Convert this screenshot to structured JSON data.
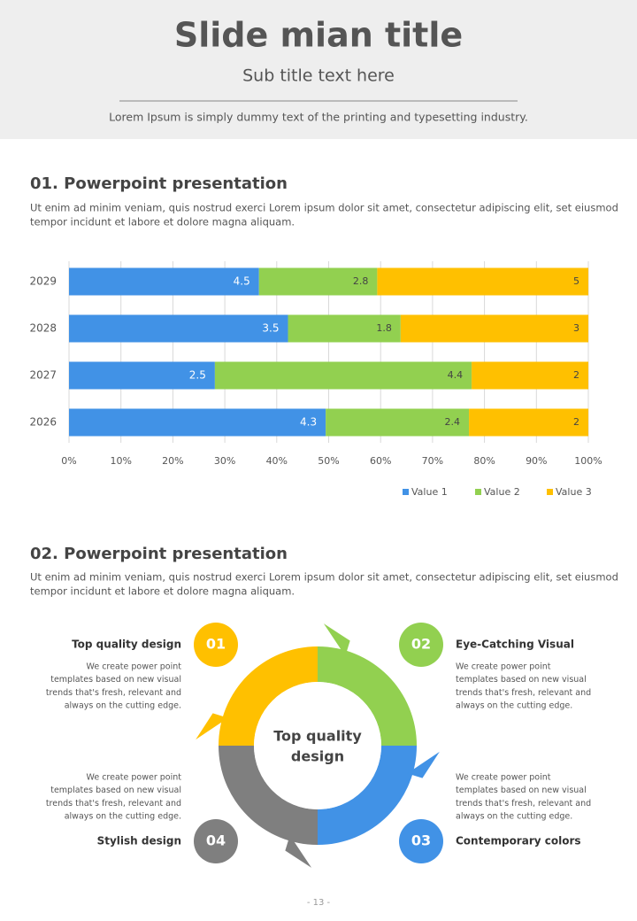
{
  "header": {
    "title": "Slide mian title",
    "subtitle": "Sub title text here",
    "description": "Lorem Ipsum is simply dummy text of the printing and typesetting industry."
  },
  "section1": {
    "heading": "01. Powerpoint presentation",
    "text_lines": [
      "Ut enim ad minim veniam, quis nostrud exerci  Lorem ipsum dolor sit amet, consectetur adipiscing elit, set eiusmod",
      "tempor incidunt et labore et dolore magna aliquam."
    ]
  },
  "chart_data": {
    "type": "stacked_percent_bar",
    "orientation": "horizontal",
    "categories": [
      "2029",
      "2028",
      "2027",
      "2026"
    ],
    "series": [
      {
        "name": "Value 1",
        "color": "#4192e6",
        "values": [
          4.5,
          3.5,
          2.5,
          4.3
        ]
      },
      {
        "name": "Value 2",
        "color": "#92d050",
        "values": [
          2.8,
          1.8,
          4.4,
          2.4
        ]
      },
      {
        "name": "Value 3",
        "color": "#ffc000",
        "values": [
          5,
          3,
          2,
          2
        ]
      }
    ],
    "xlim": [
      0,
      100
    ],
    "xticks": [
      {
        "value": 0,
        "label": "0%"
      },
      {
        "value": 10,
        "label": "10%"
      },
      {
        "value": 20,
        "label": "20%"
      },
      {
        "value": 30,
        "label": "30%"
      },
      {
        "value": 40,
        "label": "40%"
      },
      {
        "value": 50,
        "label": "50%"
      },
      {
        "value": 60,
        "label": "60%"
      },
      {
        "value": 70,
        "label": "70%"
      },
      {
        "value": 80,
        "label": "80%"
      },
      {
        "value": 90,
        "label": "90%"
      },
      {
        "value": 100,
        "label": "100%"
      }
    ],
    "grid": true,
    "legend": "bottom-right"
  },
  "section2": {
    "heading": "02. Powerpoint presentation",
    "text_lines": [
      "Ut enim ad minim veniam, quis nostrud exerci  Lorem ipsum dolor sit amet, consectetur adipiscing elit, set eiusmod",
      "tempor incidunt et labore et dolore magna aliquam."
    ],
    "center_label": [
      "Top quality",
      "design"
    ],
    "items": [
      {
        "number": "01",
        "title": "Top quality design",
        "text_lines": [
          "We create power point",
          "templates based on new visual",
          "trends that's fresh, relevant and",
          "always on the cutting edge."
        ]
      },
      {
        "number": "02",
        "title": "Eye-Catching Visual",
        "text_lines": [
          "We create power point",
          "templates based on new visual",
          "trends that's fresh, relevant and",
          "always on the cutting edge."
        ]
      },
      {
        "number": "03",
        "title": "Contemporary colors",
        "text_lines": [
          "We create power point",
          "templates based on new visual",
          "trends that's fresh, relevant and",
          "always on the cutting edge."
        ]
      },
      {
        "number": "04",
        "title": "Stylish design",
        "text_lines": [
          "We create power point",
          "templates based on new visual",
          "trends that's fresh, relevant and",
          "always on the cutting edge."
        ]
      }
    ]
  },
  "page_number": "- 13 -"
}
